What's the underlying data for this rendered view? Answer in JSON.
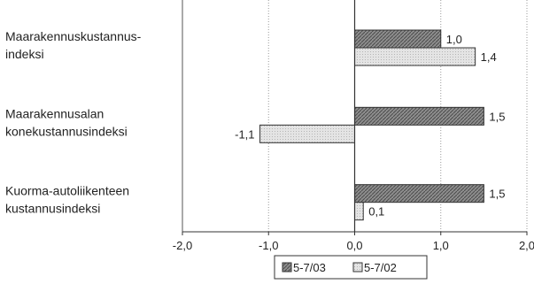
{
  "chart_data": {
    "type": "bar",
    "orientation": "horizontal",
    "categories": [
      [
        "Maarakennuskustannus-",
        "indeksi"
      ],
      [
        "Maarakennusalan",
        "konekustannusindeksi"
      ],
      [
        "Kuorma-autoliikenteen",
        "kustannusindeksi"
      ]
    ],
    "series": [
      {
        "name": "5-7/03",
        "values": [
          1.0,
          1.5,
          1.5
        ],
        "labels": [
          "1,0",
          "1,5",
          "1,5"
        ],
        "color": "#8a8a8a",
        "pattern": "hatched"
      },
      {
        "name": "5-7/02",
        "values": [
          1.4,
          -1.1,
          0.1
        ],
        "labels": [
          "1,4",
          "-1,1",
          "0,1"
        ],
        "color": "#e0e0e0",
        "pattern": "dotted"
      }
    ],
    "xlim": [
      -2.0,
      2.0
    ],
    "xticks": [
      -2.0,
      -1.0,
      0.0,
      1.0,
      2.0
    ],
    "xtick_labels": [
      "-2,0",
      "-1,0",
      "0,0",
      "1,0",
      "2,0"
    ],
    "grid": "vertical dotted",
    "legend_position": "bottom",
    "title": "",
    "xlabel": "",
    "ylabel": ""
  }
}
